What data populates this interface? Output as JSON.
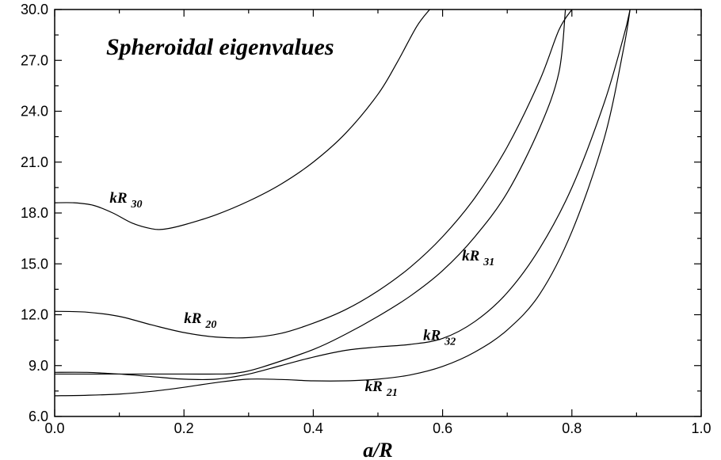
{
  "chart_data": {
    "type": "line",
    "title": "Spheroidal eigenvalues",
    "xlabel": "a/R",
    "ylabel": "",
    "xlim": [
      0.0,
      1.0
    ],
    "ylim": [
      6.0,
      30.0
    ],
    "grid": false,
    "x_ticks": [
      "0.0",
      "0.2",
      "0.4",
      "0.6",
      "0.8",
      "1.0"
    ],
    "y_ticks": [
      "6.0",
      "9.0",
      "12.0",
      "15.0",
      "18.0",
      "21.0",
      "24.0",
      "27.0",
      "30.0"
    ],
    "series": [
      {
        "name": "kR 30",
        "label_main": "kR",
        "label_sub": "30",
        "label_at": [
          0.085,
          18.6
        ],
        "x": [
          0.0,
          0.03,
          0.06,
          0.09,
          0.12,
          0.15,
          0.17,
          0.2,
          0.25,
          0.3,
          0.35,
          0.4,
          0.45,
          0.5,
          0.53,
          0.56,
          0.58
        ],
        "y": [
          18.6,
          18.6,
          18.45,
          18.0,
          17.4,
          17.07,
          17.05,
          17.3,
          17.9,
          18.7,
          19.7,
          21.0,
          22.7,
          25.0,
          26.9,
          29.0,
          30.0
        ]
      },
      {
        "name": "kR 20",
        "label_main": "kR",
        "label_sub": "20",
        "label_at": [
          0.2,
          11.5
        ],
        "x": [
          0.0,
          0.05,
          0.1,
          0.15,
          0.2,
          0.25,
          0.3,
          0.35,
          0.4,
          0.45,
          0.5,
          0.55,
          0.6,
          0.65,
          0.7,
          0.75,
          0.78,
          0.8
        ],
        "y": [
          12.2,
          12.15,
          11.9,
          11.4,
          10.95,
          10.68,
          10.65,
          10.9,
          11.5,
          12.3,
          13.4,
          14.8,
          16.6,
          18.9,
          21.9,
          25.8,
          28.8,
          30.0
        ]
      },
      {
        "name": "kR 31",
        "label_main": "kR",
        "label_sub": "31",
        "label_at": [
          0.63,
          15.2
        ],
        "x": [
          0.0,
          0.1,
          0.2,
          0.25,
          0.28,
          0.32,
          0.4,
          0.45,
          0.5,
          0.55,
          0.6,
          0.65,
          0.7,
          0.75,
          0.78,
          0.79
        ],
        "y": [
          8.5,
          8.5,
          8.5,
          8.5,
          8.55,
          8.9,
          9.95,
          10.85,
          11.9,
          13.1,
          14.6,
          16.6,
          19.2,
          23.0,
          26.3,
          30.0
        ]
      },
      {
        "name": "kR 32",
        "label_main": "kR",
        "label_sub": "32",
        "label_at": [
          0.57,
          10.5
        ],
        "x": [
          0.0,
          0.05,
          0.1,
          0.15,
          0.2,
          0.25,
          0.3,
          0.35,
          0.4,
          0.45,
          0.5,
          0.55,
          0.6,
          0.65,
          0.7,
          0.75,
          0.8,
          0.85,
          0.88,
          0.89
        ],
        "y": [
          8.6,
          8.6,
          8.5,
          8.35,
          8.2,
          8.2,
          8.5,
          9.0,
          9.5,
          9.9,
          10.1,
          10.25,
          10.6,
          11.6,
          13.3,
          15.9,
          19.5,
          24.5,
          28.4,
          30.0
        ]
      },
      {
        "name": "kR 21",
        "label_main": "kR",
        "label_sub": "21",
        "label_at": [
          0.48,
          7.5
        ],
        "x": [
          0.0,
          0.05,
          0.1,
          0.15,
          0.2,
          0.25,
          0.3,
          0.35,
          0.4,
          0.45,
          0.5,
          0.55,
          0.6,
          0.65,
          0.7,
          0.75,
          0.8,
          0.85,
          0.88,
          0.89
        ],
        "y": [
          7.22,
          7.25,
          7.32,
          7.48,
          7.72,
          8.0,
          8.2,
          8.18,
          8.1,
          8.1,
          8.2,
          8.45,
          8.95,
          9.8,
          11.1,
          13.2,
          16.9,
          22.4,
          27.7,
          30.0
        ]
      }
    ]
  }
}
